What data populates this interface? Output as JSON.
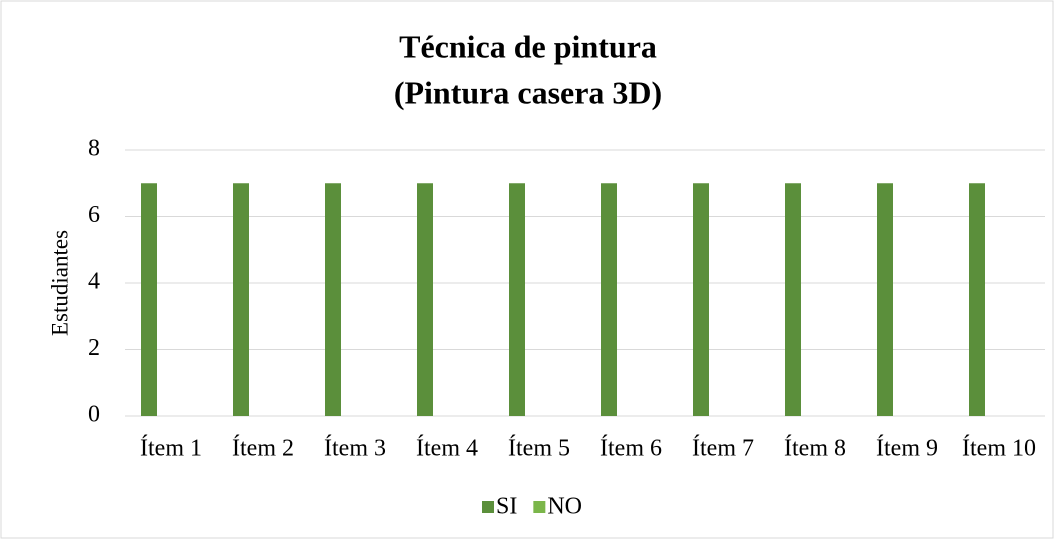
{
  "chart_data": {
    "type": "bar",
    "title": [
      "Técnica de pintura",
      "(Pintura casera 3D)"
    ],
    "y_label": "Estudiantes",
    "categories": [
      "Ítem 1",
      "Ítem 2",
      "Ítem 3",
      "Ítem 4",
      "Ítem 5",
      "Ítem 6",
      "Ítem 7",
      "Ítem 8",
      "Ítem 9",
      "Ítem 10"
    ],
    "series": [
      {
        "name": "SI",
        "color": "#5b8f3b",
        "values": [
          7,
          7,
          7,
          7,
          7,
          7,
          7,
          7,
          7,
          7
        ]
      },
      {
        "name": "NO",
        "color": "#7bb64a",
        "values": [
          0,
          0,
          0,
          0,
          0,
          0,
          0,
          0,
          0,
          0
        ]
      }
    ],
    "ylim": [
      0,
      8
    ],
    "yticks": [
      0,
      2,
      4,
      6,
      8
    ],
    "grid": true,
    "legend": "bottom"
  }
}
